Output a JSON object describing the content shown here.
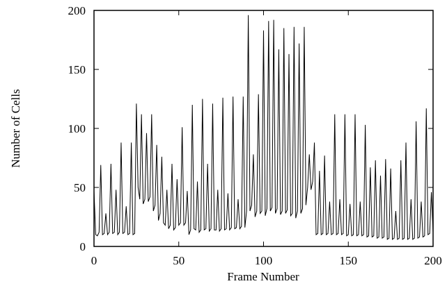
{
  "chart_data": {
    "type": "line",
    "xlabel": "Frame Number",
    "ylabel": "Number of Cells",
    "x": [
      0,
      1,
      2,
      3,
      4,
      5,
      6,
      7,
      8,
      9,
      10,
      11,
      12,
      13,
      14,
      15,
      16,
      17,
      18,
      19,
      20,
      21,
      22,
      23,
      24,
      25,
      26,
      27,
      28,
      29,
      30,
      31,
      32,
      33,
      34,
      35,
      36,
      37,
      38,
      39,
      40,
      41,
      42,
      43,
      44,
      45,
      46,
      47,
      48,
      49,
      50,
      51,
      52,
      53,
      54,
      55,
      56,
      57,
      58,
      59,
      60,
      61,
      62,
      63,
      64,
      65,
      66,
      67,
      68,
      69,
      70,
      71,
      72,
      73,
      74,
      75,
      76,
      77,
      78,
      79,
      80,
      81,
      82,
      83,
      84,
      85,
      86,
      87,
      88,
      89,
      90,
      91,
      92,
      93,
      94,
      95,
      96,
      97,
      98,
      99,
      100,
      101,
      102,
      103,
      104,
      105,
      106,
      107,
      108,
      109,
      110,
      111,
      112,
      113,
      114,
      115,
      116,
      117,
      118,
      119,
      120,
      121,
      122,
      123,
      124,
      125,
      126,
      127,
      128,
      129,
      130,
      131,
      132,
      133,
      134,
      135,
      136,
      137,
      138,
      139,
      140,
      141,
      142,
      143,
      144,
      145,
      146,
      147,
      148,
      149,
      150,
      151,
      152,
      153,
      154,
      155,
      156,
      157,
      158,
      159,
      160,
      161,
      162,
      163,
      164,
      165,
      166,
      167,
      168,
      169,
      170,
      171,
      172,
      173,
      174,
      175,
      176,
      177,
      178,
      179,
      180,
      181,
      182,
      183,
      184,
      185,
      186,
      187,
      188,
      189,
      190,
      191,
      192,
      193,
      194,
      195,
      196,
      197,
      198,
      199,
      200
    ],
    "values": [
      47,
      10,
      9,
      12,
      69,
      10,
      11,
      28,
      10,
      12,
      70,
      11,
      12,
      48,
      10,
      12,
      88,
      11,
      12,
      34,
      10,
      11,
      88,
      10,
      11,
      121,
      50,
      40,
      112,
      36,
      40,
      96,
      38,
      42,
      112,
      30,
      35,
      86,
      22,
      28,
      76,
      20,
      18,
      48,
      15,
      18,
      70,
      14,
      16,
      57,
      18,
      20,
      101,
      18,
      20,
      47,
      10,
      14,
      120,
      15,
      14,
      55,
      12,
      14,
      125,
      14,
      15,
      70,
      13,
      15,
      121,
      14,
      14,
      48,
      13,
      15,
      126,
      14,
      15,
      45,
      14,
      16,
      127,
      15,
      16,
      40,
      15,
      17,
      127,
      16,
      30,
      196,
      30,
      35,
      78,
      25,
      30,
      129,
      28,
      30,
      183,
      26,
      32,
      191,
      30,
      33,
      192,
      28,
      32,
      167,
      27,
      30,
      185,
      28,
      31,
      163,
      26,
      28,
      186,
      24,
      30,
      172,
      28,
      32,
      186,
      35,
      50,
      78,
      48,
      55,
      88,
      10,
      11,
      64,
      10,
      11,
      77,
      10,
      11,
      38,
      10,
      11,
      112,
      10,
      11,
      40,
      10,
      11,
      112,
      9,
      10,
      36,
      9,
      10,
      112,
      9,
      10,
      38,
      9,
      10,
      103,
      8,
      9,
      67,
      8,
      9,
      73,
      7,
      8,
      60,
      7,
      8,
      74,
      6,
      7,
      66,
      6,
      7,
      30,
      6,
      7,
      73,
      6,
      7,
      88,
      6,
      7,
      40,
      6,
      7,
      106,
      7,
      8,
      38,
      8,
      9,
      117,
      10,
      11,
      46,
      12
    ],
    "color": "#000000",
    "xlim": [
      0,
      200
    ],
    "xticks": [
      0,
      50,
      100,
      150,
      200
    ],
    "ylim": [
      0,
      200
    ],
    "yticks": [
      0,
      50,
      100,
      150,
      200
    ]
  }
}
